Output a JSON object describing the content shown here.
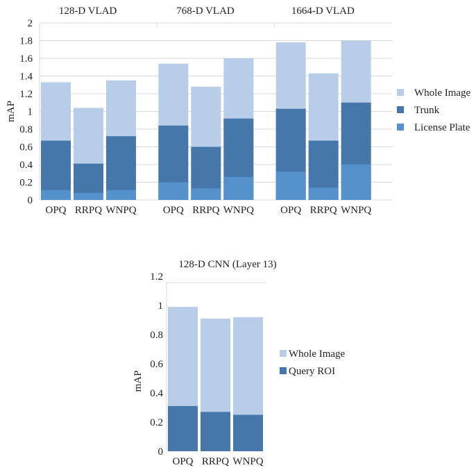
{
  "chart_data": [
    {
      "type": "bar",
      "stacked": "overlay",
      "ylabel": "mAP",
      "ylim": [
        0,
        2
      ],
      "yticks": [
        "0",
        "0.2",
        "0.4",
        "0.6",
        "0.8",
        "1",
        "1.2",
        "1.4",
        "1.6",
        "1.8",
        "2"
      ],
      "grid": true,
      "legend_position": "right",
      "groups": [
        "128-D VLAD",
        "768-D VLAD",
        "1664-D VLAD"
      ],
      "categories": [
        "OPQ",
        "RRPQ",
        "WNPQ"
      ],
      "series": [
        {
          "name": "Whole Image",
          "color": "#b8cde8",
          "values": [
            [
              1.33,
              1.04,
              1.35
            ],
            [
              1.54,
              1.28,
              1.6
            ],
            [
              1.78,
              1.43,
              1.8
            ]
          ]
        },
        {
          "name": "Trunk",
          "color": "#4677ab",
          "values": [
            [
              0.67,
              0.41,
              0.72
            ],
            [
              0.84,
              0.6,
              0.92
            ],
            [
              1.03,
              0.67,
              1.1
            ]
          ]
        },
        {
          "name": "License Plate",
          "color": "#5592cb",
          "values": [
            [
              0.11,
              0.08,
              0.11
            ],
            [
              0.2,
              0.13,
              0.26
            ],
            [
              0.32,
              0.14,
              0.4
            ]
          ]
        }
      ]
    },
    {
      "type": "bar",
      "stacked": "overlay",
      "title": "128-D CNN (Layer 13)",
      "ylabel": "mAP",
      "ylim": [
        0,
        1.2
      ],
      "yticks": [
        "0",
        "0.2",
        "0.4",
        "0.6",
        "0.8",
        "1",
        "1.2"
      ],
      "grid": false,
      "legend_position": "right",
      "categories": [
        "OPQ",
        "RRPQ",
        "WNPQ"
      ],
      "series": [
        {
          "name": "Whole Image",
          "color": "#b8cde8",
          "values": [
            0.99,
            0.91,
            0.92
          ]
        },
        {
          "name": "Query ROI",
          "color": "#4677ab",
          "values": [
            0.31,
            0.27,
            0.25
          ]
        }
      ]
    }
  ]
}
